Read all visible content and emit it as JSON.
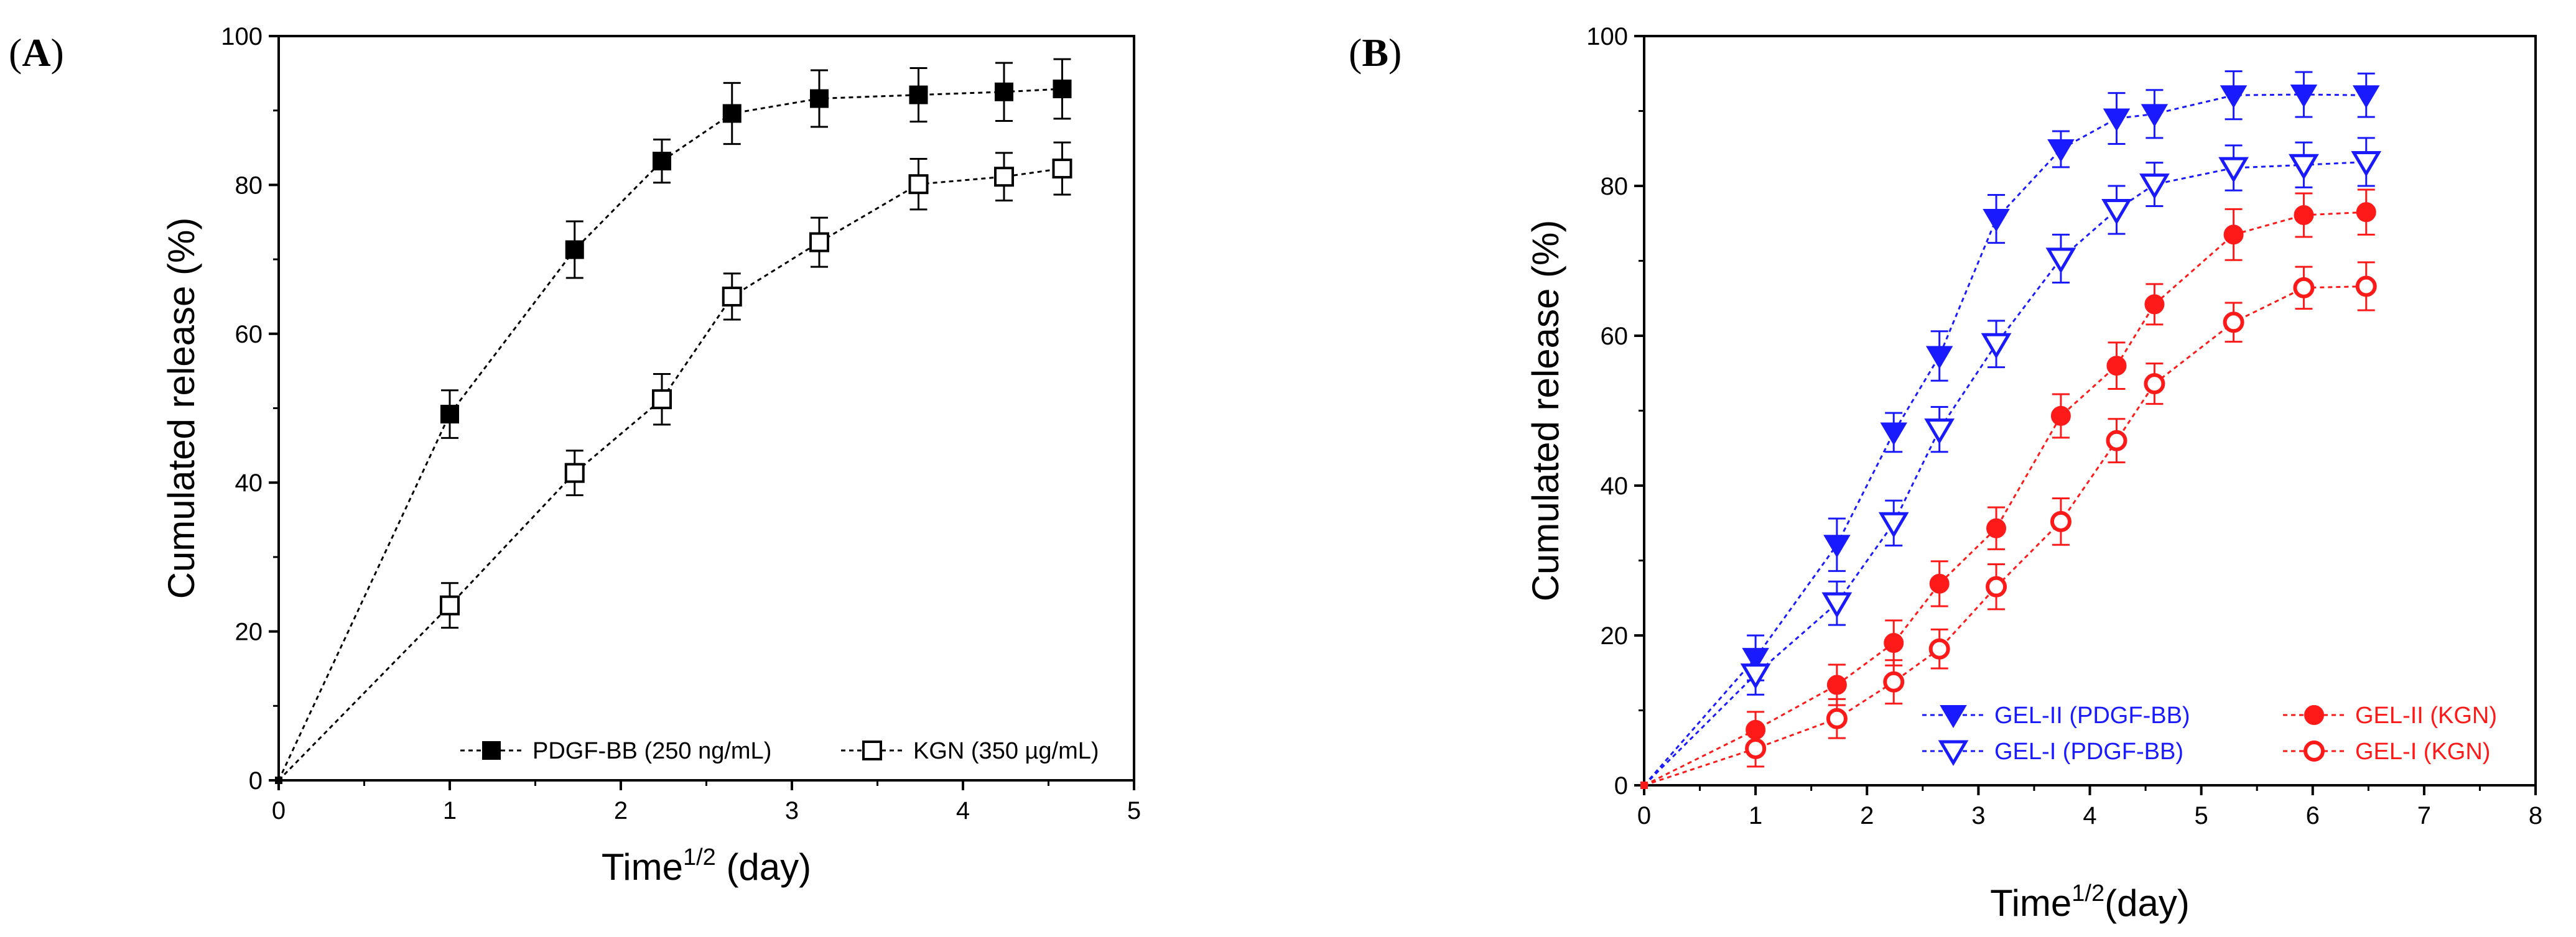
{
  "panels": {
    "a": {
      "label": "A"
    },
    "b": {
      "label": "B"
    }
  },
  "chart_data": [
    {
      "id": "A",
      "type": "scatter",
      "xlabel": "Time",
      "xlabel_sup": "1/2",
      "xlabel_unit": "(day)",
      "ylabel": "Cumulated release (%)",
      "xlim": [
        0,
        5
      ],
      "ylim": [
        0,
        100
      ],
      "xticks": [
        0,
        1,
        2,
        3,
        4,
        5
      ],
      "yticks": [
        0,
        20,
        40,
        60,
        80,
        100
      ],
      "legend_position": "bottom-right",
      "series": [
        {
          "name": "PDGF-BB (250 ng/mL)",
          "marker": "square-filled",
          "color": "#000000",
          "x": [
            0,
            1,
            1.73,
            2.24,
            2.65,
            3.16,
            3.74,
            4.24,
            4.58
          ],
          "y": [
            0,
            49.2,
            71.3,
            83.2,
            89.6,
            91.6,
            92.1,
            92.5,
            92.9
          ],
          "err": [
            0,
            3.2,
            3.8,
            2.9,
            4.1,
            3.8,
            3.6,
            3.9,
            4.0
          ]
        },
        {
          "name": "KGN (350 µg/mL)",
          "marker": "square-open",
          "color": "#000000",
          "x": [
            0,
            1,
            1.73,
            2.24,
            2.65,
            3.16,
            3.74,
            4.24,
            4.58
          ],
          "y": [
            0,
            23.5,
            41.3,
            51.2,
            65.0,
            72.3,
            80.1,
            81.1,
            82.2
          ],
          "err": [
            0,
            3.0,
            3.0,
            3.4,
            3.1,
            3.3,
            3.4,
            3.2,
            3.5
          ]
        }
      ]
    },
    {
      "id": "B",
      "type": "scatter",
      "xlabel": "Time",
      "xlabel_sup": "1/2",
      "xlabel_unit": "(day)",
      "ylabel": "Cumulated release (%)",
      "xlim": [
        0,
        8
      ],
      "ylim": [
        0,
        100
      ],
      "xticks": [
        0,
        1,
        2,
        3,
        4,
        5,
        6,
        7,
        8
      ],
      "yticks": [
        0,
        20,
        40,
        60,
        80,
        100
      ],
      "legend_position": "bottom-right",
      "series": [
        {
          "name": "GEL-II (PDGF-BB)",
          "marker": "triangle-down-filled",
          "color": "#1a1aff",
          "x": [
            0,
            1,
            1.73,
            2.24,
            2.65,
            3.16,
            3.74,
            4.24,
            4.58,
            5.29,
            5.92,
            6.48
          ],
          "y": [
            0,
            17.0,
            32.1,
            47.1,
            57.3,
            75.6,
            84.9,
            89.0,
            89.6,
            92.1,
            92.2,
            92.1
          ],
          "err": [
            0,
            3.0,
            3.5,
            2.6,
            3.3,
            3.2,
            2.4,
            3.4,
            3.2,
            3.2,
            3.0,
            2.9
          ]
        },
        {
          "name": "GEL-I  (PDGF-BB)",
          "marker": "triangle-down-open",
          "color": "#1a1aff",
          "x": [
            0,
            1,
            1.73,
            2.24,
            2.65,
            3.16,
            3.74,
            4.24,
            4.58,
            5.29,
            5.92,
            6.48
          ],
          "y": [
            0,
            14.8,
            24.3,
            35.0,
            47.5,
            58.9,
            70.3,
            76.8,
            80.2,
            82.4,
            82.8,
            83.2
          ],
          "err": [
            0,
            2.7,
            2.9,
            3.0,
            3.0,
            3.1,
            3.2,
            3.2,
            2.9,
            3.0,
            3.0,
            3.2
          ]
        },
        {
          "name": "GEL-II (KGN)",
          "marker": "circle-filled",
          "color": "#ff1a1a",
          "x": [
            0,
            1,
            1.73,
            2.24,
            2.65,
            3.16,
            3.74,
            4.24,
            4.58,
            5.29,
            5.92,
            6.48
          ],
          "y": [
            0,
            7.4,
            13.4,
            19.0,
            26.9,
            34.3,
            49.3,
            56.0,
            64.2,
            73.5,
            76.1,
            76.5
          ],
          "err": [
            0,
            2.4,
            2.7,
            3.0,
            3.0,
            2.8,
            2.9,
            3.1,
            2.7,
            3.4,
            2.9,
            3.0
          ]
        },
        {
          "name": "GEL-I  (KGN)",
          "marker": "circle-open",
          "color": "#ff1a1a",
          "x": [
            0,
            1,
            1.73,
            2.24,
            2.65,
            3.16,
            3.74,
            4.24,
            4.58,
            5.29,
            5.92,
            6.48
          ],
          "y": [
            0,
            4.9,
            8.9,
            13.8,
            18.2,
            26.5,
            35.2,
            46.0,
            53.6,
            61.8,
            66.4,
            66.6
          ],
          "err": [
            0,
            2.4,
            2.6,
            2.9,
            2.6,
            3.0,
            3.1,
            2.9,
            2.7,
            2.6,
            2.8,
            3.2
          ]
        }
      ]
    }
  ]
}
